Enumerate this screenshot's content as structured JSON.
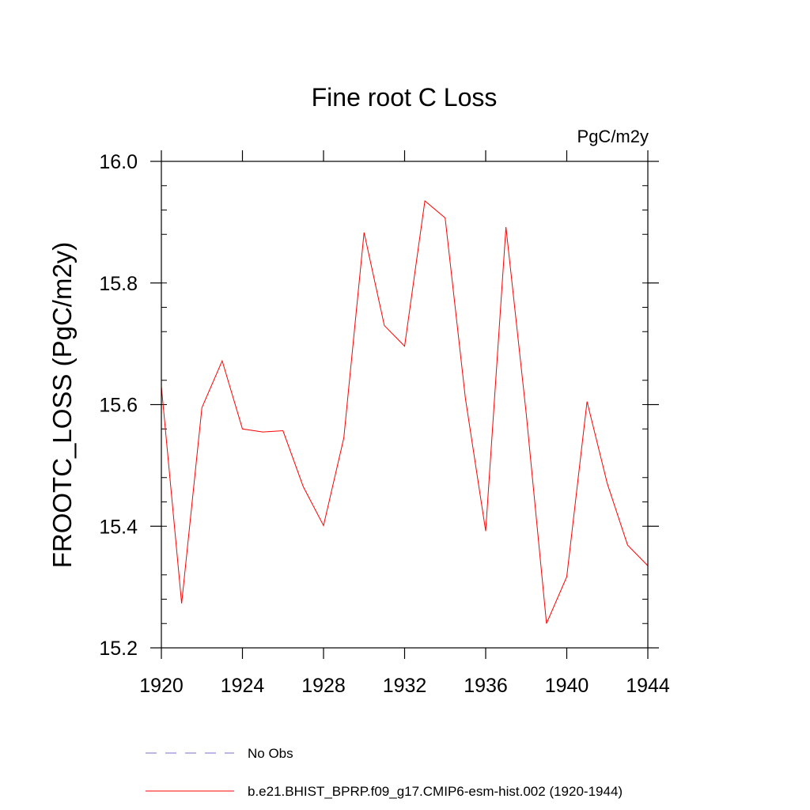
{
  "chart_data": {
    "type": "line",
    "title": "Fine root C Loss",
    "units_label": "PgC/m2y",
    "xlabel": "",
    "ylabel": "FROOTC_LOSS  (PgC/m2y)",
    "xlim": [
      1920,
      1944
    ],
    "ylim": [
      15.2,
      16.0
    ],
    "x_ticks": [
      1920,
      1924,
      1928,
      1932,
      1936,
      1940,
      1944
    ],
    "x_tick_labels": [
      "1920",
      "1924",
      "1928",
      "1932",
      "1936",
      "1940",
      "1944"
    ],
    "y_ticks": [
      15.2,
      15.4,
      15.6,
      15.8,
      16.0
    ],
    "y_tick_labels": [
      "15.2",
      "15.4",
      "15.6",
      "15.8",
      "16.0"
    ],
    "grid": false,
    "legend_position": "bottom",
    "colors": {
      "model": "#ff0000",
      "obs": "#7b6fd0"
    },
    "series": [
      {
        "name": "b.e21.BHIST_BPRP.f09_g17.CMIP6-esm-hist.002 (1920-1944)",
        "style": "solid",
        "color": "#ff0000",
        "x": [
          1920,
          1921,
          1922,
          1923,
          1924,
          1925,
          1926,
          1927,
          1928,
          1929,
          1930,
          1931,
          1932,
          1933,
          1934,
          1935,
          1936,
          1937,
          1938,
          1939,
          1940,
          1941,
          1942,
          1943,
          1944
        ],
        "values": [
          15.63,
          15.273,
          15.595,
          15.672,
          15.56,
          15.555,
          15.557,
          15.465,
          15.401,
          15.545,
          15.883,
          15.73,
          15.696,
          15.935,
          15.907,
          15.61,
          15.392,
          15.892,
          15.585,
          15.24,
          15.317,
          15.605,
          15.47,
          15.369,
          15.335
        ]
      }
    ],
    "legend": [
      {
        "label": "No Obs",
        "style": "dashed",
        "color": "#7b6fd0"
      },
      {
        "label": "b.e21.BHIST_BPRP.f09_g17.CMIP6-esm-hist.002 (1920-1944)",
        "style": "solid",
        "color": "#ff0000"
      }
    ]
  }
}
